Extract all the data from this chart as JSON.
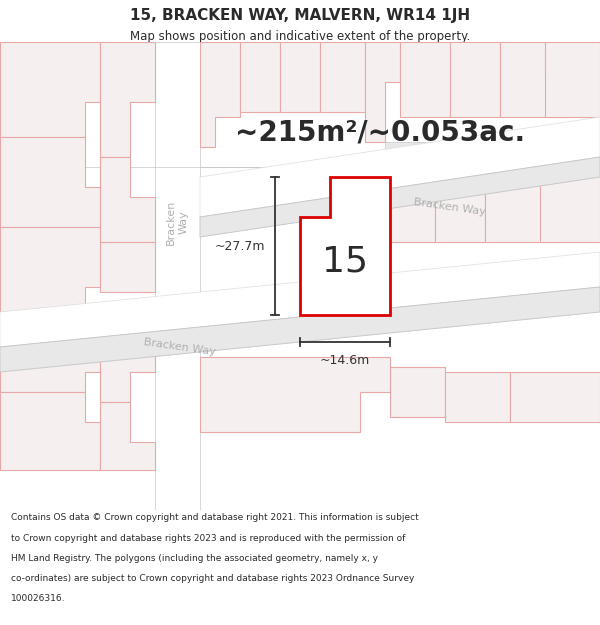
{
  "title": "15, BRACKEN WAY, MALVERN, WR14 1JH",
  "subtitle": "Map shows position and indicative extent of the property.",
  "area_text": "~215m²/~0.053ac.",
  "label_number": "15",
  "dim_height": "~27.7m",
  "dim_width": "~14.6m",
  "footer_lines": [
    "Contains OS data © Crown copyright and database right 2021. This information is subject",
    "to Crown copyright and database rights 2023 and is reproduced with the permission of",
    "HM Land Registry. The polygons (including the associated geometry, namely x, y",
    "co-ordinates) are subject to Crown copyright and database rights 2023 Ordnance Survey",
    "100026316."
  ],
  "map_bg": "#f2f1f0",
  "road_bg": "#ffffff",
  "road_line": "#c8c8c8",
  "block_bg": "#e8e8e8",
  "pink_stroke": "#e8a8a8",
  "pink_fill": "#f5efef",
  "red_line": "#dd0000",
  "plot_fill": "#ffffff",
  "text_dark": "#2a2a2a",
  "dim_color": "#333333",
  "road_label_color": "#b0b0b0",
  "title_fontsize": 11,
  "subtitle_fontsize": 8.5,
  "area_fontsize": 20,
  "number_fontsize": 26,
  "footer_fontsize": 6.5,
  "dim_fontsize": 9
}
